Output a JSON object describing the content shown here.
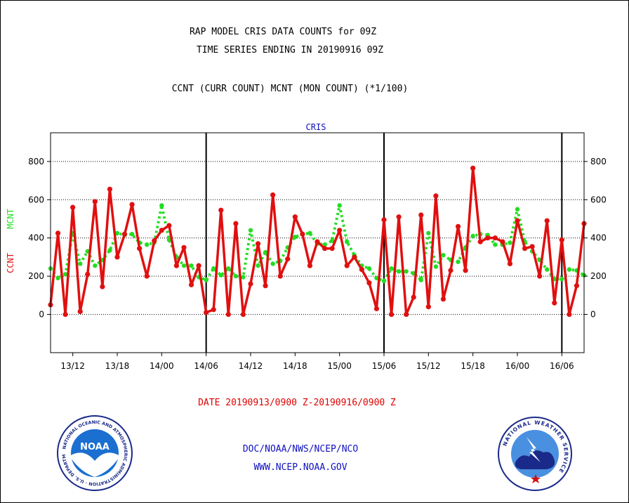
{
  "header": {
    "title_line1": "RAP MODEL CRIS DATA COUNTS for 09Z",
    "title_line2": "TIME SERIES ENDING IN 20190916 09Z",
    "subtitle": "CCNT (CURR COUNT) MCNT (MON COUNT) (*1/100)"
  },
  "footer": {
    "date_range": "DATE 20190913/0900 Z-20190916/0900 Z",
    "credit_org": "DOC/NOAA/NWS/NCEP/NCO",
    "credit_url": "WWW.NCEP.NOAA.GOV"
  },
  "logos": {
    "noaa_label": "NOAA",
    "noaa_ring_text": "NATIONAL OCEANIC AND ATMOSPHERIC ADMINISTRATION · U.S. DEPARTMENT OF COMMERCE",
    "nws_ring_text": "NATIONAL WEATHER SERVICE"
  },
  "colors": {
    "ccnt": "#e01010",
    "mcnt": "#22dd22",
    "panel_title": "#1010c0",
    "credit": "#1010c0"
  },
  "chart_data": {
    "type": "line",
    "title": "CRIS",
    "ylabel_parts": [
      {
        "text": "CCNT",
        "color": "#e01010"
      },
      {
        "text": "MCNT",
        "color": "#22dd22"
      }
    ],
    "ylim": [
      -200,
      950
    ],
    "yticks": [
      0,
      200,
      400,
      600,
      800
    ],
    "xlim": [
      0,
      72
    ],
    "xticks": [
      {
        "hour": 3,
        "label": "13/12"
      },
      {
        "hour": 9,
        "label": "13/18"
      },
      {
        "hour": 15,
        "label": "14/00"
      },
      {
        "hour": 21,
        "label": "14/06"
      },
      {
        "hour": 27,
        "label": "14/12"
      },
      {
        "hour": 33,
        "label": "14/18"
      },
      {
        "hour": 39,
        "label": "15/00"
      },
      {
        "hour": 45,
        "label": "15/06"
      },
      {
        "hour": 51,
        "label": "15/12"
      },
      {
        "hour": 57,
        "label": "15/18"
      },
      {
        "hour": 63,
        "label": "16/00"
      },
      {
        "hour": 69,
        "label": "16/06"
      }
    ],
    "day_dividers": [
      21,
      45,
      69
    ],
    "grid": "horizontal dotted",
    "series": [
      {
        "name": "CCNT",
        "color": "#e01010",
        "style": "solid",
        "x": [
          0,
          1,
          2,
          3,
          4,
          5,
          6,
          7,
          8,
          9,
          10,
          11,
          12,
          13,
          14,
          15,
          16,
          17,
          18,
          19,
          20,
          21,
          22,
          23,
          24,
          25,
          26,
          27,
          28,
          29,
          30,
          31,
          32,
          33,
          34,
          35,
          36,
          37,
          38,
          39,
          40,
          41,
          42,
          43,
          44,
          45,
          46,
          47,
          48,
          49,
          50,
          51,
          52,
          53,
          54,
          55,
          56,
          57,
          58,
          59,
          60,
          61,
          62,
          63,
          64,
          65,
          66,
          67,
          68,
          69,
          70,
          71,
          72
        ],
        "values": [
          50,
          425,
          0,
          560,
          15,
          210,
          590,
          145,
          655,
          300,
          420,
          575,
          345,
          200,
          385,
          440,
          465,
          255,
          350,
          155,
          255,
          10,
          25,
          545,
          0,
          475,
          0,
          160,
          370,
          150,
          625,
          200,
          290,
          510,
          420,
          255,
          380,
          345,
          345,
          440,
          255,
          300,
          235,
          165,
          30,
          495,
          0,
          510,
          0,
          90,
          520,
          40,
          620,
          80,
          230,
          460,
          230,
          765,
          380,
          400,
          400,
          380,
          265,
          490,
          345,
          355,
          200,
          490,
          60,
          390,
          0,
          150,
          475
        ]
      },
      {
        "name": "MCNT",
        "color": "#22dd22",
        "style": "dotted",
        "x": [
          0,
          1,
          2,
          3,
          4,
          5,
          6,
          7,
          8,
          9,
          10,
          11,
          12,
          13,
          14,
          15,
          16,
          17,
          18,
          19,
          20,
          21,
          22,
          23,
          24,
          25,
          26,
          27,
          28,
          29,
          30,
          31,
          32,
          33,
          34,
          35,
          36,
          37,
          38,
          39,
          40,
          41,
          42,
          43,
          44,
          45,
          46,
          47,
          48,
          49,
          50,
          51,
          52,
          53,
          54,
          55,
          56,
          57,
          58,
          59,
          60,
          61,
          62,
          63,
          64,
          65,
          66,
          67,
          68,
          69,
          70,
          71,
          72
        ],
        "values": [
          240,
          190,
          210,
          425,
          265,
          330,
          255,
          285,
          335,
          425,
          415,
          420,
          375,
          365,
          375,
          570,
          390,
          300,
          255,
          255,
          195,
          180,
          240,
          205,
          240,
          200,
          195,
          440,
          255,
          325,
          265,
          280,
          350,
          405,
          420,
          425,
          370,
          365,
          385,
          570,
          380,
          310,
          255,
          240,
          190,
          175,
          240,
          225,
          225,
          215,
          180,
          425,
          250,
          310,
          285,
          275,
          350,
          410,
          420,
          415,
          365,
          365,
          375,
          550,
          380,
          330,
          285,
          235,
          185,
          185,
          235,
          230,
          205
        ]
      }
    ]
  }
}
